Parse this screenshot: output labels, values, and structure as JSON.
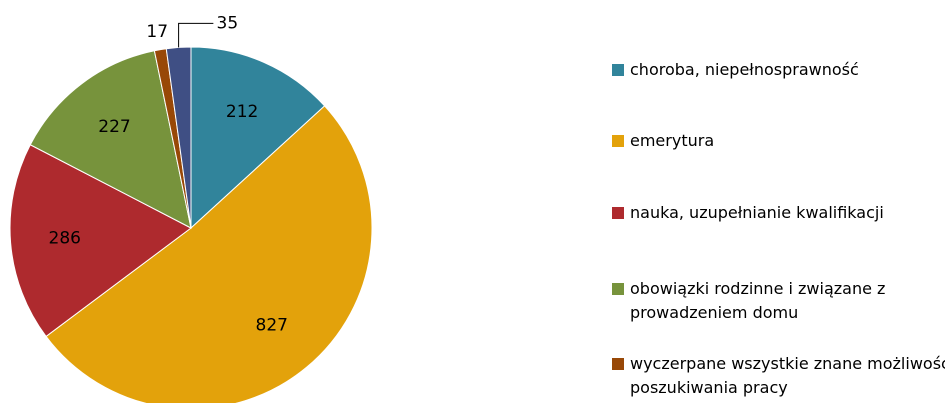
{
  "chart_data": {
    "type": "pie",
    "categories": [
      "choroba, niepełnosprawność",
      "emerytura",
      "nauka, uzupełnianie kwalifikacji",
      "obowiązki rodzinne i związane z prowadzeniem domu",
      "wyczerpane wszystkie znane możliwości poszukiwania pracy",
      null
    ],
    "values": [
      212,
      827,
      286,
      227,
      17,
      35
    ],
    "colors": [
      "#31849b",
      "#e3a20b",
      "#ae2a2e",
      "#77933c",
      "#984807",
      "#3f4f84"
    ],
    "legend": "right"
  }
}
